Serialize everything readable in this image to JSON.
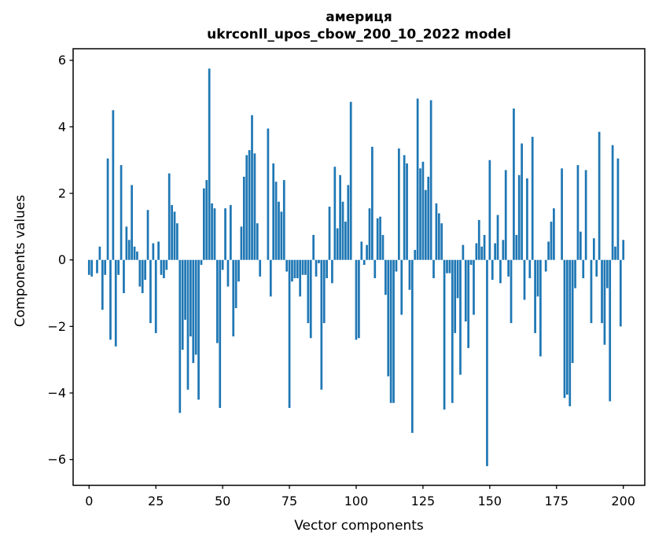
{
  "chart_data": {
    "type": "bar",
    "title": "америця",
    "subtitle": "ukrconll_upos_cbow_200_10_2022 model",
    "xlabel": "Vector components",
    "ylabel": "Components values",
    "x_ticks": [
      0,
      25,
      50,
      75,
      100,
      125,
      150,
      175,
      200
    ],
    "y_ticks": [
      -6,
      -4,
      -2,
      0,
      2,
      4,
      6
    ],
    "xlim": [
      -6,
      208
    ],
    "ylim": [
      -6.8,
      6.35
    ],
    "grid": false,
    "legend_position": "none",
    "bar_color": "#1f77b4",
    "axis_color": "#000000",
    "background_color": "#ffffff",
    "x_start_index": 0,
    "values": [
      -0.45,
      -0.5,
      0,
      -0.4,
      0.4,
      -1.5,
      -0.45,
      3.05,
      -2.4,
      4.5,
      -2.6,
      -0.45,
      2.85,
      -1.0,
      1.0,
      0.6,
      2.25,
      0.4,
      0.25,
      -0.8,
      -1.0,
      -0.6,
      1.5,
      -1.9,
      0.5,
      -2.2,
      0.55,
      -0.45,
      -0.55,
      -0.3,
      2.6,
      1.65,
      1.45,
      1.1,
      -4.6,
      -2.7,
      -1.8,
      -3.9,
      -2.3,
      -3.1,
      -2.85,
      -4.2,
      -0.15,
      2.15,
      2.4,
      5.75,
      1.7,
      1.55,
      -2.5,
      -4.45,
      -0.3,
      1.55,
      -0.8,
      1.65,
      -2.3,
      -1.45,
      -0.65,
      1.0,
      2.5,
      3.15,
      3.3,
      4.35,
      3.2,
      1.1,
      -0.5,
      0,
      0,
      3.95,
      -1.1,
      2.9,
      2.35,
      1.75,
      1.45,
      2.4,
      -0.35,
      -4.45,
      -0.65,
      -0.55,
      -0.55,
      -1.1,
      -0.45,
      -0.45,
      -1.9,
      -2.35,
      0.75,
      -0.5,
      -0.1,
      -3.9,
      -1.9,
      -0.55,
      1.6,
      -0.7,
      2.8,
      0.95,
      2.55,
      1.75,
      1.15,
      2.25,
      4.75,
      0,
      -2.4,
      -2.35,
      0.55,
      -0.15,
      0.45,
      1.55,
      3.4,
      -0.55,
      1.25,
      1.3,
      0.75,
      -1.05,
      -3.5,
      -4.3,
      -4.3,
      -0.35,
      3.35,
      -1.65,
      3.15,
      2.9,
      -0.9,
      -5.2,
      0.3,
      4.85,
      2.75,
      2.95,
      2.1,
      2.5,
      4.8,
      -0.55,
      1.7,
      1.4,
      1.1,
      -4.5,
      -0.4,
      -0.4,
      -4.3,
      -2.2,
      -1.15,
      -3.45,
      0.45,
      -1.85,
      -2.65,
      -0.15,
      -1.65,
      0.5,
      1.2,
      0.4,
      0.75,
      -6.2,
      3.0,
      -0.6,
      0.5,
      1.35,
      -0.7,
      0.6,
      2.7,
      -0.5,
      -1.9,
      4.55,
      0.75,
      2.55,
      3.5,
      -1.2,
      2.45,
      -0.55,
      3.7,
      -2.2,
      -1.1,
      -2.9,
      0,
      -0.35,
      0.55,
      1.15,
      1.55,
      0,
      0,
      2.75,
      -4.15,
      -4.05,
      -4.4,
      -3.1,
      -0.85,
      2.85,
      0.85,
      -0.55,
      2.7,
      0,
      -1.9,
      0.65,
      -0.5,
      3.85,
      -1.9,
      -2.55,
      -0.85,
      -4.25,
      3.45,
      0.4,
      3.05,
      -2.0,
      0.6
    ]
  }
}
